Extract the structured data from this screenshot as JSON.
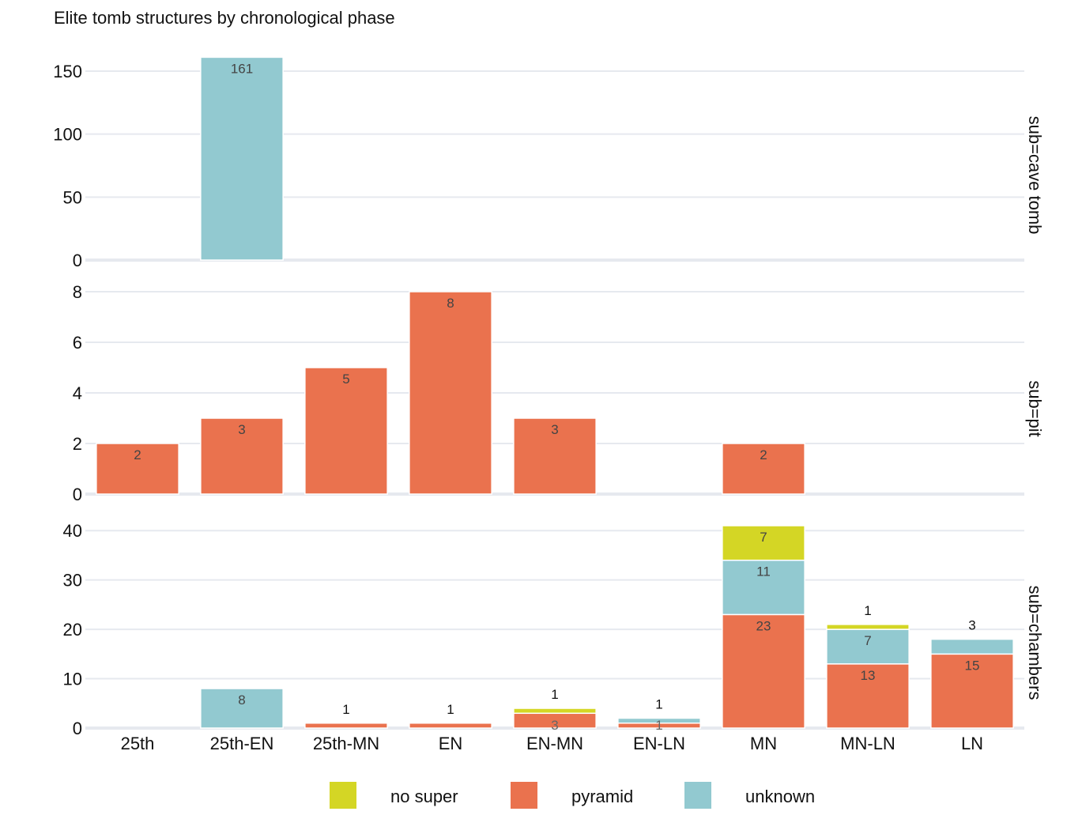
{
  "chart_data": {
    "type": "bar",
    "stacked": true,
    "title": "Elite tomb structures by chronological phase",
    "categories": [
      "25th",
      "25th-EN",
      "25th-MN",
      "EN",
      "EN-MN",
      "EN-LN",
      "MN",
      "MN-LN",
      "LN"
    ],
    "legend": {
      "position": "bottom",
      "entries": [
        {
          "key": "no_super",
          "label": "no super",
          "color": "#d4d625"
        },
        {
          "key": "pyramid",
          "label": "pyramid",
          "color": "#ea724e"
        },
        {
          "key": "unknown",
          "label": "unknown",
          "color": "#92c9d0"
        }
      ]
    },
    "stack_order": [
      "pyramid",
      "unknown",
      "no_super"
    ],
    "facets": [
      {
        "label": "sub=cave tomb",
        "ylim": [
          0,
          160
        ],
        "yticks": [
          0,
          50,
          100,
          150
        ],
        "series": {
          "pyramid": [
            0,
            0,
            0,
            0,
            0,
            0,
            0,
            0,
            0
          ],
          "unknown": [
            0,
            161,
            0,
            0,
            0,
            0,
            0,
            0,
            0
          ],
          "no_super": [
            0,
            0,
            0,
            0,
            0,
            0,
            0,
            0,
            0
          ]
        }
      },
      {
        "label": "sub=pit",
        "ylim": [
          0,
          8
        ],
        "yticks": [
          0,
          2,
          4,
          6,
          8
        ],
        "series": {
          "pyramid": [
            2,
            3,
            5,
            8,
            3,
            0,
            2,
            0,
            0
          ],
          "unknown": [
            0,
            0,
            0,
            0,
            0,
            0,
            0,
            0,
            0
          ],
          "no_super": [
            0,
            0,
            0,
            0,
            0,
            0,
            0,
            0,
            0
          ]
        }
      },
      {
        "label": "sub=chambers",
        "ylim": [
          0,
          41
        ],
        "yticks": [
          0,
          10,
          20,
          30,
          40
        ],
        "series": {
          "pyramid": [
            0,
            0,
            1,
            1,
            3,
            1,
            23,
            13,
            15
          ],
          "unknown": [
            0,
            8,
            0,
            0,
            0,
            1,
            11,
            7,
            3
          ],
          "no_super": [
            0,
            0,
            0,
            0,
            1,
            0,
            7,
            1,
            0
          ]
        }
      }
    ],
    "grid": true
  }
}
